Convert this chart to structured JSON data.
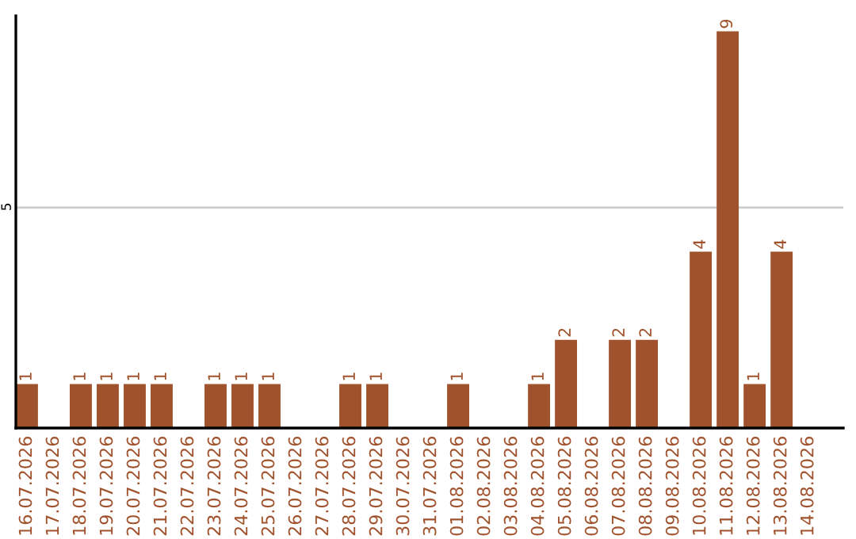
{
  "chart_data": {
    "type": "bar",
    "categories": [
      "16.07.2026",
      "17.07.2026",
      "18.07.2026",
      "19.07.2026",
      "20.07.2026",
      "21.07.2026",
      "22.07.2026",
      "23.07.2026",
      "24.07.2026",
      "25.07.2026",
      "26.07.2026",
      "27.07.2026",
      "28.07.2026",
      "29.07.2026",
      "30.07.2026",
      "31.07.2026",
      "01.08.2026",
      "02.08.2026",
      "03.08.2026",
      "04.08.2026",
      "05.08.2026",
      "06.08.2026",
      "07.08.2026",
      "08.08.2026",
      "09.08.2026",
      "10.08.2026",
      "11.08.2026",
      "12.08.2026",
      "13.08.2026",
      "14.08.2026"
    ],
    "values": [
      1,
      0,
      1,
      1,
      1,
      1,
      0,
      1,
      1,
      1,
      0,
      0,
      1,
      1,
      0,
      0,
      1,
      0,
      0,
      1,
      2,
      0,
      2,
      2,
      0,
      4,
      9,
      1,
      4,
      0
    ],
    "value_labels": [
      "1",
      null,
      "1",
      "1",
      "1",
      "1",
      null,
      "1",
      "1",
      "1",
      null,
      null,
      "1",
      "1",
      null,
      null,
      "1",
      null,
      null,
      "1",
      "2",
      null,
      "2",
      "2",
      null,
      "4",
      "9",
      "1",
      "4",
      null
    ],
    "color": "#a0522d",
    "ylim": [
      0,
      9.35
    ],
    "yticks": [
      5
    ],
    "grid": "y"
  }
}
